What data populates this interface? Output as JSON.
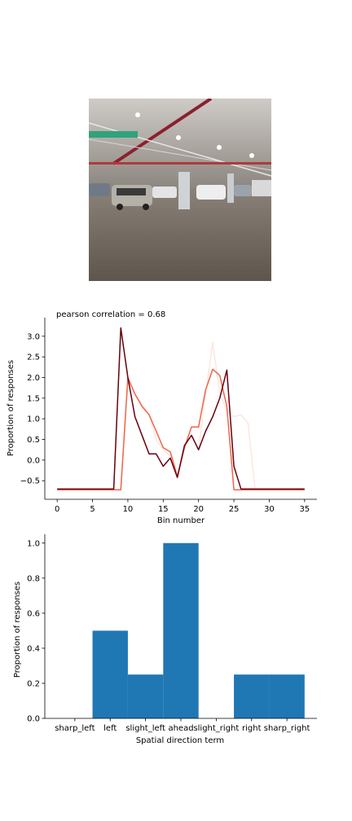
{
  "photo": {
    "alt_subject": "parking-garage-photo"
  },
  "chart_data": [
    {
      "type": "line",
      "annotation": "pearson correlation = 0.68",
      "title": "",
      "xlabel": "Bin number",
      "ylabel": "Proportion of responses",
      "xlim": [
        -1.75,
        36.75
      ],
      "ylim": [
        -0.95,
        3.45
      ],
      "xticks": [
        0,
        5,
        10,
        15,
        20,
        25,
        30,
        35
      ],
      "yticks": [
        -0.5,
        0.0,
        0.5,
        1.0,
        1.5,
        2.0,
        2.5,
        3.0
      ],
      "grid": false,
      "x": [
        0,
        1,
        2,
        3,
        4,
        5,
        6,
        7,
        8,
        9,
        10,
        11,
        12,
        13,
        14,
        15,
        16,
        17,
        18,
        19,
        20,
        21,
        22,
        23,
        24,
        25,
        26,
        27,
        28,
        29,
        30,
        31,
        32,
        33,
        34,
        35
      ],
      "series": [
        {
          "color": "#fde7e0",
          "values": [
            -0.72,
            -0.72,
            -0.72,
            -0.72,
            -0.72,
            -0.72,
            -0.72,
            -0.72,
            -0.72,
            -0.72,
            1.95,
            1.6,
            1.35,
            1.1,
            0.5,
            0.25,
            0.1,
            -0.45,
            0.3,
            0.6,
            0.25,
            1.6,
            2.85,
            1.6,
            1.2,
            1.05,
            1.1,
            0.9,
            -0.72,
            -0.72,
            -0.72,
            -0.72,
            -0.72,
            -0.72,
            -0.72,
            -0.72
          ]
        },
        {
          "color": "#ef6548",
          "values": [
            -0.72,
            -0.72,
            -0.72,
            -0.72,
            -0.72,
            -0.72,
            -0.72,
            -0.72,
            -0.72,
            -0.72,
            2.0,
            1.6,
            1.3,
            1.1,
            0.7,
            0.3,
            0.2,
            -0.4,
            0.3,
            0.8,
            0.8,
            1.7,
            2.2,
            2.05,
            1.3,
            -0.72,
            -0.72,
            -0.72,
            -0.72,
            -0.72,
            -0.72,
            -0.72,
            -0.72,
            -0.72,
            -0.72,
            -0.72
          ]
        },
        {
          "color": "#67000d",
          "values": [
            -0.7,
            -0.7,
            -0.7,
            -0.7,
            -0.7,
            -0.7,
            -0.7,
            -0.7,
            -0.7,
            3.2,
            2.0,
            1.05,
            0.6,
            0.15,
            0.15,
            -0.15,
            0.05,
            -0.42,
            0.35,
            0.6,
            0.25,
            0.7,
            1.05,
            1.5,
            2.18,
            -0.15,
            -0.7,
            -0.7,
            -0.7,
            -0.7,
            -0.7,
            -0.7,
            -0.7,
            -0.7,
            -0.7,
            -0.7
          ]
        }
      ]
    },
    {
      "type": "bar",
      "title": "",
      "xlabel": "Spatial direction term",
      "ylabel": "Proportion of responses",
      "categories": [
        "sharp_left",
        "left",
        "slight_left",
        "ahead",
        "slight_right",
        "right",
        "sharp_right"
      ],
      "values": [
        0.0,
        0.5,
        0.25,
        1.0,
        0.0,
        0.25,
        0.25
      ],
      "ylim": [
        0.0,
        1.05
      ],
      "yticks": [
        0.0,
        0.2,
        0.4,
        0.6,
        0.8,
        1.0
      ],
      "bar_color": "#1f77b4",
      "grid": false
    }
  ]
}
